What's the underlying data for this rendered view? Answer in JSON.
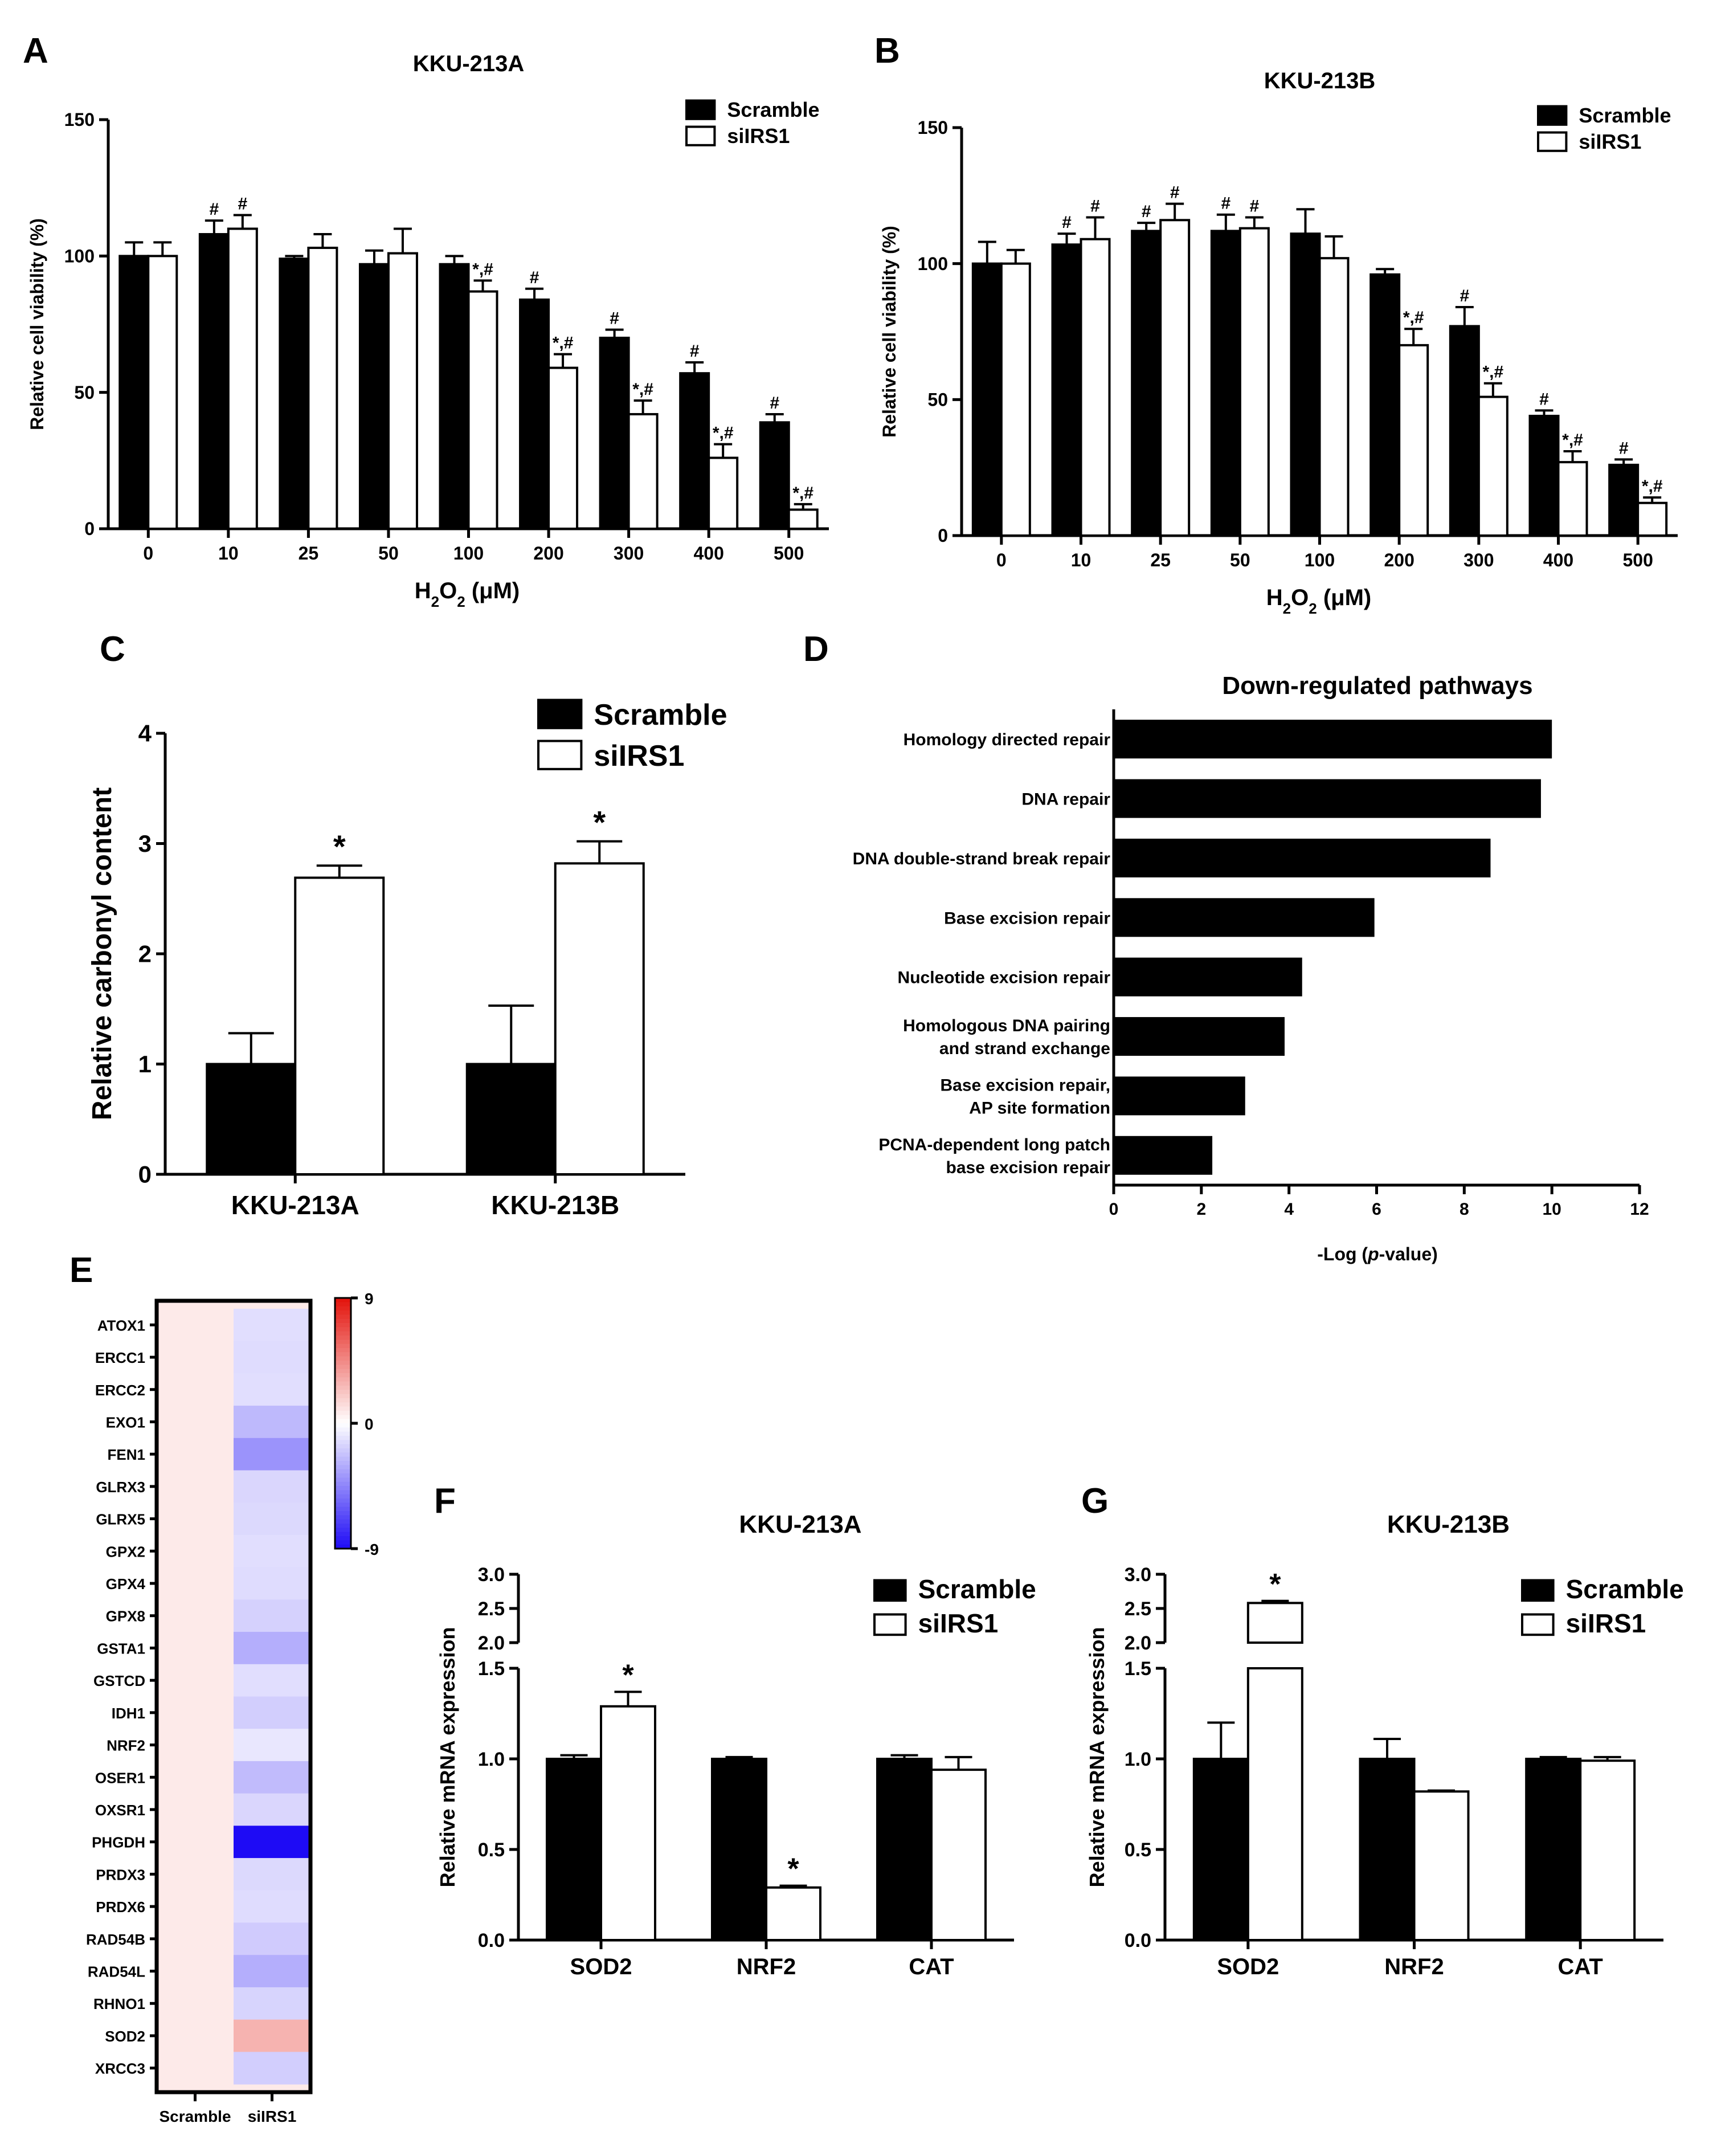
{
  "panel_letters": {
    "A": "A",
    "B": "B",
    "C": "C",
    "D": "D",
    "E": "E",
    "F": "F",
    "G": "G"
  },
  "colors": {
    "scramble": "#000000",
    "siIRS1": "#ffffff",
    "heat_pos": "#e3120b",
    "heat_neg": "#1e0bf5"
  },
  "chart_data": [
    {
      "panel": "A",
      "type": "bar",
      "title": "KKU-213A",
      "ylabel": "Relative cell viability (%)",
      "xlabel_main": "H",
      "xlabel_sub1": "2",
      "xlabel_mid": "O",
      "xlabel_sub2": "2",
      "xlabel_unit": " (μM)",
      "ylim": [
        0,
        150
      ],
      "yticks": [
        "0",
        "50",
        "100",
        "150"
      ],
      "categories": [
        "0",
        "10",
        "25",
        "50",
        "100",
        "200",
        "300",
        "400",
        "500"
      ],
      "legend_placement": "top-right",
      "series": [
        {
          "name": "Scramble",
          "values": [
            100,
            108,
            99,
            97,
            97,
            84,
            70,
            57,
            39
          ],
          "errors": [
            5,
            5,
            1,
            5,
            3,
            4,
            3,
            4,
            3
          ],
          "annotations": [
            "",
            "#",
            "",
            "",
            "",
            "#",
            "#",
            "#",
            "#"
          ]
        },
        {
          "name": "siIRS1",
          "values": [
            100,
            110,
            103,
            101,
            87,
            59,
            42,
            26,
            7
          ],
          "errors": [
            5,
            5,
            5,
            9,
            4,
            5,
            5,
            5,
            2
          ],
          "annotations": [
            "",
            "#",
            "",
            "",
            "*,#",
            "*,#",
            "*,#",
            "*,#",
            "*,#"
          ]
        }
      ]
    },
    {
      "panel": "B",
      "type": "bar",
      "title": "KKU-213B",
      "ylabel": "Relative cell viability (%)",
      "xlabel_main": "H",
      "xlabel_sub1": "2",
      "xlabel_mid": "O",
      "xlabel_sub2": "2",
      "xlabel_unit": " (μM)",
      "ylim": [
        0,
        150
      ],
      "yticks": [
        "0",
        "50",
        "100",
        "150"
      ],
      "categories": [
        "0",
        "10",
        "25",
        "50",
        "100",
        "200",
        "300",
        "400",
        "500"
      ],
      "legend_placement": "top-right",
      "series": [
        {
          "name": "Scramble",
          "values": [
            100,
            107,
            112,
            112,
            111,
            96,
            77,
            44,
            26
          ],
          "errors": [
            8,
            4,
            3,
            6,
            9,
            2,
            7,
            2,
            2
          ],
          "annotations": [
            "",
            "#",
            "#",
            "#",
            "",
            "",
            "#",
            "#",
            "#"
          ]
        },
        {
          "name": "siIRS1",
          "values": [
            100,
            109,
            116,
            113,
            102,
            70,
            51,
            27,
            12
          ],
          "errors": [
            5,
            8,
            6,
            4,
            8,
            6,
            5,
            4,
            2
          ],
          "annotations": [
            "",
            "#",
            "#",
            "#",
            "",
            "*,#",
            "*,#",
            "*,#",
            "*,#"
          ]
        }
      ]
    },
    {
      "panel": "C",
      "type": "bar",
      "title": "",
      "ylabel": "Relative carbonyl content",
      "ylim": [
        0,
        4
      ],
      "yticks": [
        "0",
        "1",
        "2",
        "3",
        "4"
      ],
      "categories": [
        "KKU-213A",
        "KKU-213B"
      ],
      "legend_placement": "top-right",
      "series": [
        {
          "name": "Scramble",
          "values": [
            1.0,
            1.0
          ],
          "errors": [
            0.28,
            0.53
          ],
          "annotations": [
            "",
            ""
          ]
        },
        {
          "name": "siIRS1",
          "values": [
            2.69,
            2.82
          ],
          "errors": [
            0.11,
            0.2
          ],
          "annotations": [
            "*",
            "*"
          ]
        }
      ]
    },
    {
      "panel": "D",
      "type": "bar",
      "orientation": "horizontal",
      "title": "Down-regulated pathways",
      "xlabel_pre": "-Log (",
      "xlabel_italic": "p",
      "xlabel_post": "-value)",
      "xlim": [
        0,
        12
      ],
      "xticks": [
        "0",
        "2",
        "4",
        "6",
        "8",
        "10",
        "12"
      ],
      "categories": [
        [
          "Homology directed repair"
        ],
        [
          "DNA repair"
        ],
        [
          "DNA double-strand break repair"
        ],
        [
          "Base excision repair"
        ],
        [
          "Nucleotide excision repair"
        ],
        [
          "Homologous DNA pairing",
          "and strand exchange"
        ],
        [
          "Base excision repair,",
          "AP site formation"
        ],
        [
          "PCNA-dependent long patch",
          "base excision repair"
        ]
      ],
      "values": [
        10.0,
        9.75,
        8.6,
        5.95,
        4.3,
        3.9,
        3.0,
        2.25
      ]
    },
    {
      "panel": "E",
      "type": "heatmap",
      "title": "",
      "columns": [
        "Scramble",
        "siIRS1"
      ],
      "rows": [
        "ATOX1",
        "ERCC1",
        "ERCC2",
        "EXO1",
        "FEN1",
        "GLRX3",
        "GLRX5",
        "GPX2",
        "GPX4",
        "GPX8",
        "GSTA1",
        "GSTCD",
        "IDH1",
        "NRF2",
        "OSER1",
        "OXSR1",
        "PHGDH",
        "PRDX3",
        "PRDX6",
        "RAD54B",
        "RAD54L",
        "RHNO1",
        "SOD2",
        "XRCC3"
      ],
      "values": [
        [
          0.8,
          -1.2
        ],
        [
          0.8,
          -1.3
        ],
        [
          0.8,
          -1.2
        ],
        [
          0.8,
          -2.6
        ],
        [
          0.8,
          -4.0
        ],
        [
          0.8,
          -1.5
        ],
        [
          0.8,
          -1.4
        ],
        [
          0.8,
          -1.2
        ],
        [
          0.8,
          -1.3
        ],
        [
          0.8,
          -1.7
        ],
        [
          0.8,
          -3.0
        ],
        [
          0.8,
          -1.2
        ],
        [
          0.8,
          -1.8
        ],
        [
          0.8,
          -0.9
        ],
        [
          0.8,
          -2.5
        ],
        [
          0.8,
          -1.5
        ],
        [
          0.8,
          -9.0
        ],
        [
          0.8,
          -1.4
        ],
        [
          0.8,
          -1.3
        ],
        [
          0.8,
          -1.9
        ],
        [
          0.8,
          -3.0
        ],
        [
          0.8,
          -1.6
        ],
        [
          0.8,
          2.9
        ],
        [
          0.8,
          -1.8
        ]
      ],
      "colorbar": {
        "min": -9,
        "max": 9,
        "ticks": [
          "9",
          "0",
          "-9"
        ]
      }
    },
    {
      "panel": "F",
      "type": "bar",
      "title": "KKU-213A",
      "ylabel": "Relative mRNA expression",
      "axis_break": {
        "lower": [
          0,
          1.5
        ],
        "upper": [
          2.0,
          3.0
        ]
      },
      "yticks_lower": [
        "0.0",
        "0.5",
        "1.0",
        "1.5"
      ],
      "yticks_upper": [
        "2.0",
        "2.5",
        "3.0"
      ],
      "categories": [
        "SOD2",
        "NRF2",
        "CAT"
      ],
      "legend_placement": "top-right",
      "series": [
        {
          "name": "Scramble",
          "values": [
            1.0,
            1.0,
            1.0
          ],
          "errors": [
            0.02,
            0.01,
            0.02
          ],
          "annotations": [
            "",
            "",
            ""
          ]
        },
        {
          "name": "siIRS1",
          "values": [
            1.29,
            0.29,
            0.94
          ],
          "errors": [
            0.08,
            0.01,
            0.07
          ],
          "annotations": [
            "*",
            "*",
            ""
          ]
        }
      ]
    },
    {
      "panel": "G",
      "type": "bar",
      "title": "KKU-213B",
      "ylabel": "Relative mRNA expression",
      "axis_break": {
        "lower": [
          0,
          1.5
        ],
        "upper": [
          2.0,
          3.0
        ]
      },
      "yticks_lower": [
        "0.0",
        "0.5",
        "1.0",
        "1.5"
      ],
      "yticks_upper": [
        "2.0",
        "2.5",
        "3.0"
      ],
      "categories": [
        "SOD2",
        "NRF2",
        "CAT"
      ],
      "legend_placement": "top-right",
      "series": [
        {
          "name": "Scramble",
          "values": [
            1.0,
            1.0,
            1.0
          ],
          "errors": [
            0.2,
            0.11,
            0.01
          ],
          "annotations": [
            "",
            "",
            ""
          ]
        },
        {
          "name": "siIRS1",
          "values": [
            2.58,
            0.82,
            0.99
          ],
          "errors": [
            0.03,
            0.005,
            0.02
          ],
          "annotations": [
            "*",
            "",
            ""
          ]
        }
      ]
    }
  ]
}
